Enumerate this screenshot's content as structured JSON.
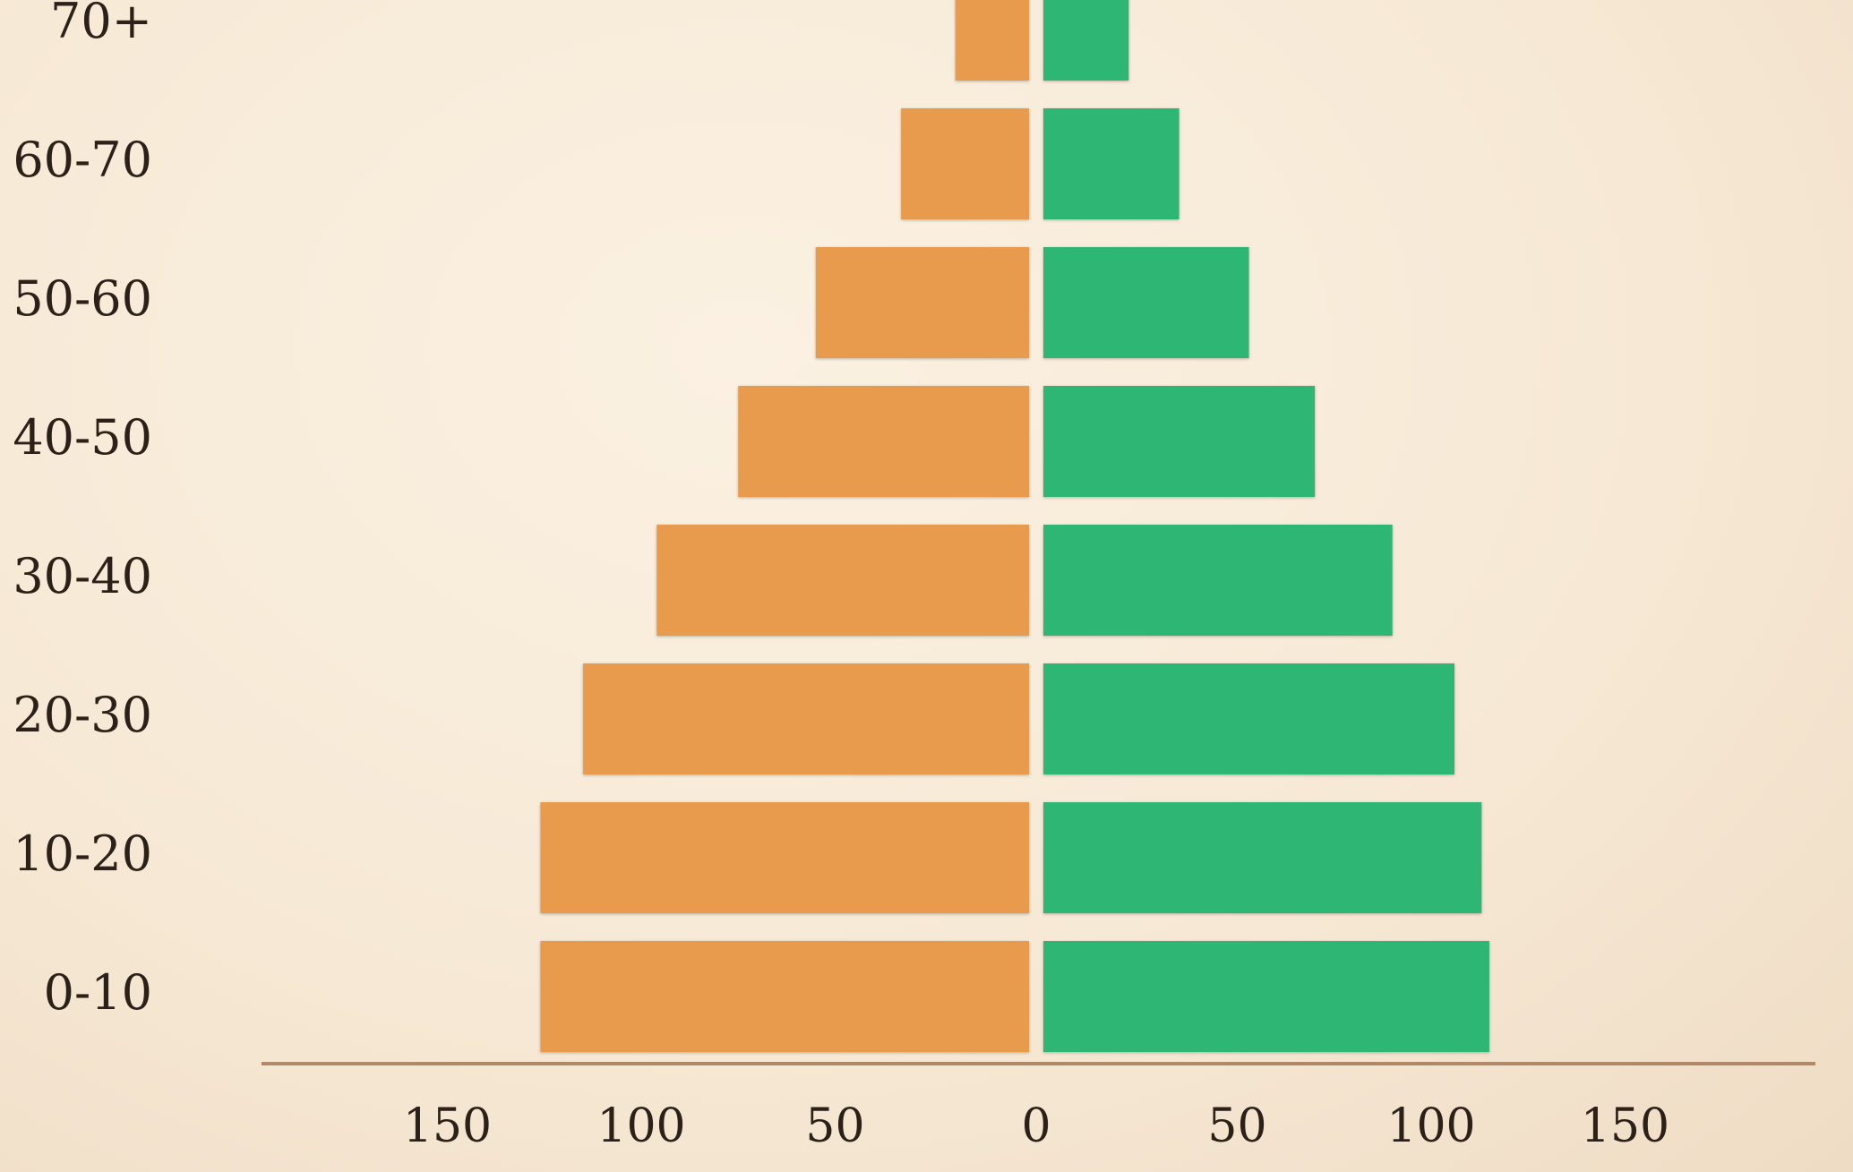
{
  "chart_data": {
    "type": "bar",
    "orientation": "horizontal",
    "layout": "population-pyramid",
    "categories": [
      "0-10",
      "10-20",
      "20-30",
      "30-40",
      "40-50",
      "50-60",
      "60-70",
      "70+"
    ],
    "series": [
      {
        "side": "left",
        "values": [
          126,
          126,
          115,
          96,
          75,
          55,
          33,
          19
        ],
        "color": "#e89b4c"
      },
      {
        "side": "right",
        "values": [
          115,
          113,
          106,
          90,
          70,
          53,
          35,
          22
        ],
        "color": "#2db674"
      }
    ],
    "x_ticks": [
      "150",
      "100",
      "50",
      "0",
      "50",
      "100",
      "150"
    ],
    "xlim": [
      -150,
      150
    ],
    "axis_color": "#b08968",
    "grid": false,
    "legend": "none"
  }
}
